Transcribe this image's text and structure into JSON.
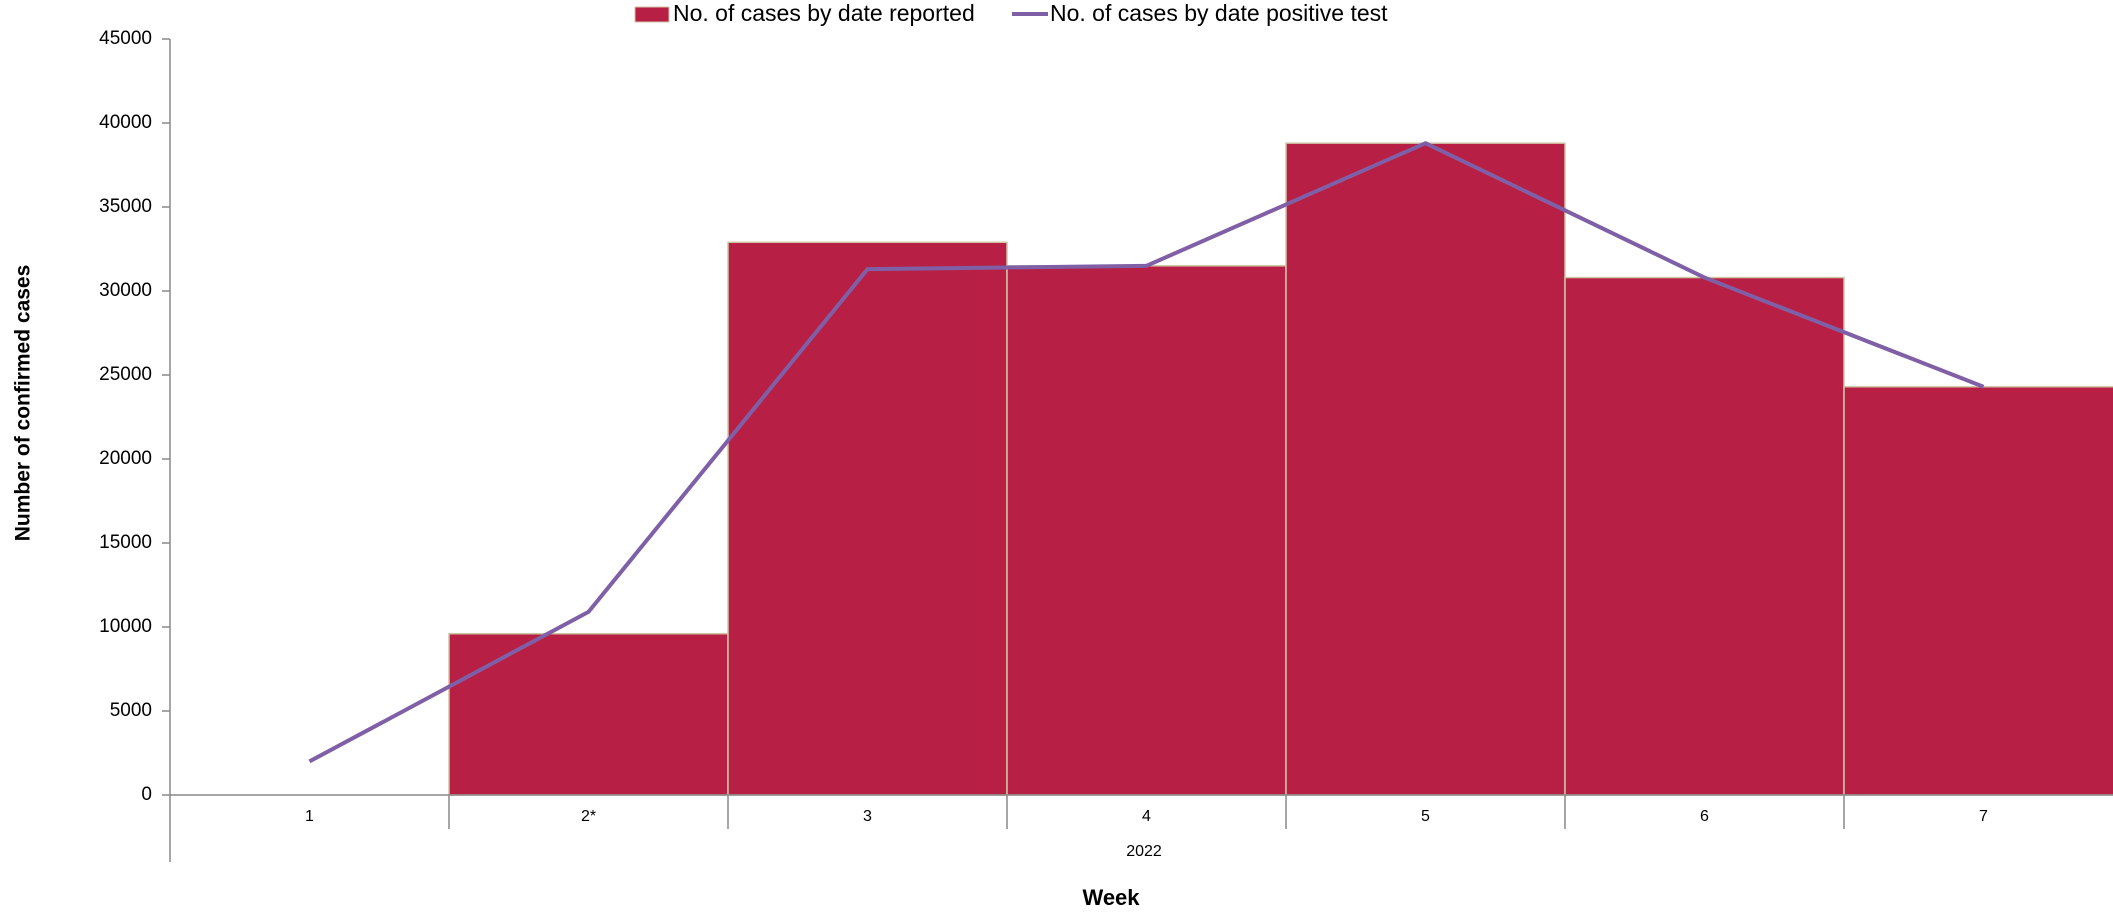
{
  "chart_data": {
    "type": "bar",
    "categories": [
      "1",
      "2*",
      "3",
      "4",
      "5",
      "6",
      "7"
    ],
    "group_label": "2022",
    "x_label": "Week",
    "y_label": "Number of confirmed cases",
    "series": [
      {
        "name": "No. of cases by date reported",
        "type": "bar",
        "color": "#b81f44",
        "values": [
          null,
          9600,
          32900,
          31500,
          38800,
          30800,
          24300
        ]
      },
      {
        "name": "No. of cases by date positive test",
        "type": "line",
        "color": "#7f5fa6",
        "values": [
          2000,
          10900,
          31300,
          31500,
          38800,
          30800,
          24300
        ]
      }
    ],
    "ylim": [
      0,
      45000
    ],
    "yticks": [
      0,
      5000,
      10000,
      15000,
      20000,
      25000,
      30000,
      35000,
      40000,
      45000
    ],
    "grid": false
  }
}
